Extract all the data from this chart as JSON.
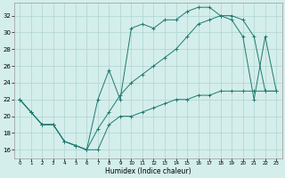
{
  "xlabel": "Humidex (Indice chaleur)",
  "bg_color": "#d4eeeb",
  "grid_color": "#aed4d0",
  "line_color": "#1e7a70",
  "xlim": [
    -0.5,
    23.5
  ],
  "ylim": [
    15.0,
    33.5
  ],
  "xticks": [
    0,
    1,
    2,
    3,
    4,
    5,
    6,
    7,
    8,
    9,
    10,
    11,
    12,
    13,
    14,
    15,
    16,
    17,
    18,
    19,
    20,
    21,
    22,
    23
  ],
  "yticks": [
    16,
    18,
    20,
    22,
    24,
    26,
    28,
    30,
    32
  ],
  "line1_x": [
    0,
    1,
    2,
    3,
    4,
    5,
    6,
    7,
    8,
    9,
    10,
    11,
    12,
    13,
    14,
    15,
    16,
    17,
    18,
    19,
    20,
    21,
    22,
    23
  ],
  "line1_y": [
    22,
    20.5,
    19.0,
    19.0,
    17.0,
    16.5,
    16.0,
    16.0,
    19.0,
    20.0,
    20.0,
    20.5,
    21.0,
    21.5,
    22.0,
    22.0,
    22.5,
    22.5,
    23.0,
    23.0,
    23.0,
    23.0,
    23.0,
    23.0
  ],
  "line2_x": [
    0,
    1,
    2,
    3,
    4,
    5,
    6,
    7,
    8,
    9,
    10,
    11,
    12,
    13,
    14,
    15,
    16,
    17,
    18,
    19,
    20,
    21,
    22,
    23
  ],
  "line2_y": [
    22,
    20.5,
    19.0,
    19.0,
    17.0,
    16.5,
    16.0,
    22.0,
    25.5,
    22.0,
    30.5,
    31.0,
    30.5,
    31.5,
    31.5,
    32.5,
    33.0,
    33.0,
    32.0,
    31.5,
    29.5,
    22.0,
    29.5,
    23.0
  ],
  "line3_x": [
    0,
    1,
    2,
    3,
    4,
    5,
    6,
    7,
    8,
    9,
    10,
    11,
    12,
    13,
    14,
    15,
    16,
    17,
    18,
    19,
    20,
    21,
    22,
    23
  ],
  "line3_y": [
    22,
    20.5,
    19.0,
    19.0,
    17.0,
    16.5,
    16.0,
    18.5,
    20.5,
    22.5,
    24.0,
    25.0,
    26.0,
    27.0,
    28.0,
    29.5,
    31.0,
    31.5,
    32.0,
    32.0,
    31.5,
    29.5,
    23.0,
    23.0
  ]
}
